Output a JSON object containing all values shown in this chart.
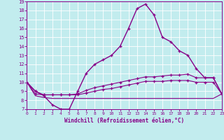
{
  "xlabel": "Windchill (Refroidissement éolien,°C)",
  "background_color": "#c2ecee",
  "line_color": "#880088",
  "grid_color": "#ffffff",
  "xlim": [
    0,
    23
  ],
  "ylim": [
    7,
    19
  ],
  "xticks": [
    0,
    1,
    2,
    3,
    4,
    5,
    6,
    7,
    8,
    9,
    10,
    11,
    12,
    13,
    14,
    15,
    16,
    17,
    18,
    19,
    20,
    21,
    22,
    23
  ],
  "yticks": [
    7,
    8,
    9,
    10,
    11,
    12,
    13,
    14,
    15,
    16,
    17,
    18,
    19
  ],
  "series": [
    {
      "x": [
        0,
        1,
        2,
        3,
        4,
        5,
        6,
        7,
        8,
        9,
        10,
        11,
        12,
        13,
        14,
        15,
        16,
        17,
        18,
        19,
        20,
        21,
        22,
        23
      ],
      "y": [
        10.0,
        9.0,
        8.5,
        7.5,
        7.0,
        7.0,
        9.0,
        11.0,
        12.0,
        12.5,
        13.0,
        14.0,
        16.0,
        18.2,
        18.7,
        17.5,
        15.0,
        14.5,
        13.5,
        13.0,
        11.5,
        10.5,
        10.5,
        8.7
      ],
      "lw": 1.0,
      "marker": true
    },
    {
      "x": [
        0,
        1,
        2,
        3,
        4,
        5,
        6,
        7,
        8,
        9,
        10,
        11,
        12,
        13,
        14,
        15,
        16,
        17,
        18,
        19,
        20,
        21,
        22,
        23
      ],
      "y": [
        10.0,
        9.0,
        8.6,
        8.6,
        8.6,
        8.6,
        8.7,
        9.1,
        9.4,
        9.6,
        9.8,
        10.0,
        10.2,
        10.4,
        10.6,
        10.6,
        10.7,
        10.8,
        10.8,
        10.9,
        10.5,
        10.5,
        10.5,
        8.7
      ],
      "lw": 0.8,
      "marker": true
    },
    {
      "x": [
        0,
        1,
        2,
        3,
        4,
        5,
        6,
        7,
        8,
        9,
        10,
        11,
        12,
        13,
        14,
        15,
        16,
        17,
        18,
        19,
        20,
        21,
        22,
        23
      ],
      "y": [
        10.0,
        8.7,
        8.6,
        8.6,
        8.6,
        8.6,
        8.6,
        8.8,
        9.0,
        9.2,
        9.3,
        9.5,
        9.7,
        9.9,
        10.1,
        10.1,
        10.1,
        10.2,
        10.2,
        10.2,
        10.0,
        10.0,
        10.0,
        8.7
      ],
      "lw": 0.8,
      "marker": true
    },
    {
      "x": [
        0,
        1,
        2,
        3,
        4,
        5,
        6,
        7,
        8,
        9,
        10,
        11,
        12,
        13,
        14,
        15,
        16,
        17,
        18,
        19,
        20,
        21,
        22,
        23
      ],
      "y": [
        10.0,
        8.5,
        8.3,
        8.2,
        8.2,
        8.2,
        8.2,
        8.2,
        8.2,
        8.2,
        8.2,
        8.2,
        8.2,
        8.2,
        8.2,
        8.2,
        8.2,
        8.2,
        8.2,
        8.2,
        8.2,
        8.2,
        8.2,
        8.7
      ],
      "lw": 0.8,
      "marker": false
    }
  ]
}
